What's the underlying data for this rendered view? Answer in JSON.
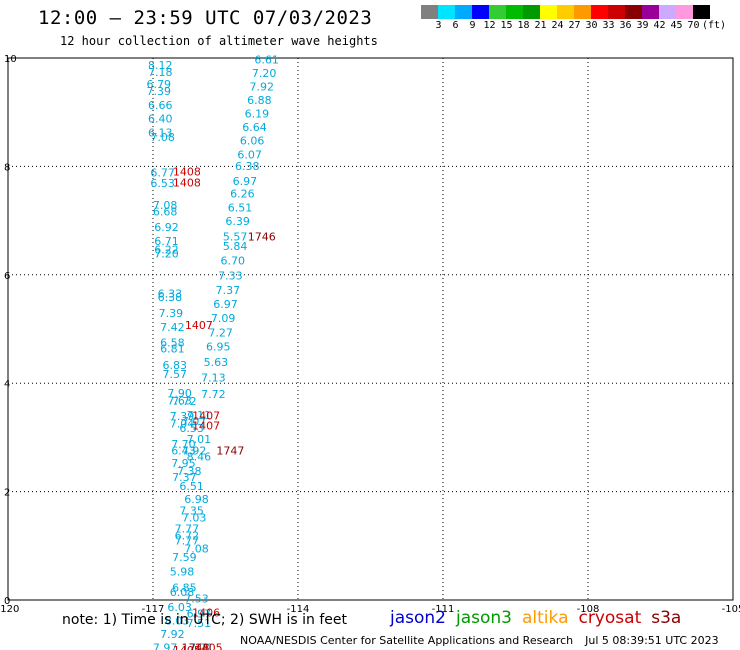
{
  "header": {
    "title": "12:00 — 23:59 UTC 07/03/2023",
    "subtitle": "12 hour collection of altimeter wave heights"
  },
  "colorbar": {
    "colors": [
      "#808080",
      "#00e5ff",
      "#00aaff",
      "#0000ff",
      "#33cc33",
      "#00bb00",
      "#009900",
      "#ffff00",
      "#ffcc00",
      "#ff9900",
      "#ff0000",
      "#cc0000",
      "#880000",
      "#990099",
      "#ccaaff",
      "#ff99dd",
      "#000000"
    ],
    "labels": [
      "3",
      "6",
      "9",
      "12",
      "15",
      "18",
      "21",
      "24",
      "27",
      "30",
      "33",
      "36",
      "39",
      "42",
      "45",
      "70",
      "(ft)"
    ]
  },
  "footer": {
    "note": "note:  1) Time is in UTC;  2) SWH is in feet",
    "satellites": [
      {
        "name": "jason2",
        "color": "#0000cc"
      },
      {
        "name": "jason3",
        "color": "#009900"
      },
      {
        "name": "altika",
        "color": "#ff9900"
      },
      {
        "name": "cryosat",
        "color": "#cc0000"
      },
      {
        "name": "s3a",
        "color": "#880000"
      }
    ],
    "credit": "NOAA/NESDIS Center for Satellite Applications and Research",
    "timestamp": "Jul  5 08:39:51 UTC 2023"
  },
  "chart_data": {
    "type": "scatter",
    "title": "12:00 — 23:59 UTC 07/03/2023",
    "subtitle": "12 hour collection of altimeter wave heights",
    "xlim": [
      -120,
      -105
    ],
    "ylim": [
      0,
      10
    ],
    "xticks": [
      "-120",
      "-117",
      "-114",
      "-111",
      "-108",
      "-105"
    ],
    "yticks": [
      "0",
      "2",
      "4",
      "6",
      "8",
      "10"
    ],
    "grid": true,
    "series": [
      {
        "name": "SWH (ft)",
        "color": "#00aadd",
        "points": [
          [
            -116.85,
            9.8,
            "8.12"
          ],
          [
            -116.85,
            9.67,
            "7.18"
          ],
          [
            -116.88,
            9.45,
            "6.79"
          ],
          [
            -116.88,
            9.32,
            "7.39"
          ],
          [
            -116.85,
            9.06,
            "6.66"
          ],
          [
            -116.85,
            8.81,
            "6.40"
          ],
          [
            -116.85,
            8.55,
            "6.13"
          ],
          [
            -116.8,
            8.47,
            "7.08"
          ],
          [
            -116.8,
            7.81,
            "6.77"
          ],
          [
            -116.8,
            7.62,
            "6.53"
          ],
          [
            -116.75,
            7.21,
            "7.08"
          ],
          [
            -116.75,
            7.09,
            "6.68"
          ],
          [
            -116.72,
            6.81,
            "6.92"
          ],
          [
            -116.72,
            6.55,
            "6.71"
          ],
          [
            -116.72,
            6.39,
            "6.22"
          ],
          [
            -116.72,
            6.32,
            "7.20"
          ],
          [
            -116.65,
            5.58,
            "6.33"
          ],
          [
            -116.65,
            5.52,
            "6.38"
          ],
          [
            -116.63,
            5.22,
            "7.39"
          ],
          [
            -116.6,
            4.96,
            "7.42"
          ],
          [
            -116.6,
            4.68,
            "6.58"
          ],
          [
            -116.6,
            4.57,
            "6.81"
          ],
          [
            -116.55,
            4.26,
            "6.83"
          ],
          [
            -116.55,
            4.1,
            "7.57"
          ],
          [
            -116.45,
            3.75,
            "7.90"
          ],
          [
            -116.45,
            3.61,
            "7.63"
          ],
          [
            -116.35,
            3.6,
            "7.72"
          ],
          [
            -116.4,
            3.32,
            "7.39"
          ],
          [
            -116.4,
            3.18,
            "7.04"
          ],
          [
            -116.2,
            3.1,
            "6.53"
          ],
          [
            -116.15,
            3.23,
            "7.07"
          ],
          [
            -116.05,
            3.34,
            "7.11"
          ],
          [
            -116.05,
            2.9,
            "7.01"
          ],
          [
            -116.37,
            2.8,
            "7.70"
          ],
          [
            -116.37,
            2.68,
            "6.43"
          ],
          [
            -116.15,
            2.68,
            "7.92"
          ],
          [
            -116.05,
            2.57,
            "8.46"
          ],
          [
            -116.37,
            2.45,
            "7.95"
          ],
          [
            -116.25,
            2.31,
            "7.38"
          ],
          [
            -116.35,
            2.2,
            "7.37"
          ],
          [
            -116.2,
            2.03,
            "6.51"
          ],
          [
            -116.1,
            1.79,
            "6.98"
          ],
          [
            -116.2,
            1.58,
            "7.35"
          ],
          [
            -116.15,
            1.45,
            "7.03"
          ],
          [
            -116.3,
            1.25,
            "7.77"
          ],
          [
            -116.3,
            1.12,
            "6.72"
          ],
          [
            -116.3,
            1.02,
            "7.77"
          ],
          [
            -116.1,
            0.88,
            "7.08"
          ],
          [
            -116.35,
            0.72,
            "7.59"
          ],
          [
            -116.4,
            0.45,
            "5.98"
          ],
          [
            -116.35,
            0.16,
            "6.85"
          ],
          [
            -116.4,
            0.07,
            "6.08"
          ],
          [
            -116.1,
            -0.05,
            "7.53"
          ],
          [
            -116.45,
            -0.2,
            "6.03"
          ],
          [
            -116.05,
            -0.32,
            "6.97"
          ],
          [
            -116.5,
            -0.45,
            "8.03"
          ],
          [
            -116.05,
            -0.5,
            "7.51"
          ],
          [
            -116.6,
            -0.7,
            "7.92"
          ],
          [
            -116.75,
            -0.95,
            "7.97"
          ],
          [
            -116.0,
            -0.95,
            "7.71"
          ],
          [
            -114.65,
            9.9,
            "6.61"
          ],
          [
            -114.7,
            9.65,
            "7.20"
          ],
          [
            -114.75,
            9.4,
            "7.92"
          ],
          [
            -114.8,
            9.15,
            "6.88"
          ],
          [
            -114.85,
            8.9,
            "6.19"
          ],
          [
            -114.9,
            8.65,
            "6.64"
          ],
          [
            -114.95,
            8.4,
            "6.06"
          ],
          [
            -115.0,
            8.15,
            "6.07"
          ],
          [
            -115.05,
            7.93,
            "6.38"
          ],
          [
            -115.1,
            7.66,
            "6.97"
          ],
          [
            -115.15,
            7.43,
            "6.26"
          ],
          [
            -115.2,
            7.17,
            "6.51"
          ],
          [
            -115.25,
            6.92,
            "6.39"
          ],
          [
            -115.3,
            6.63,
            "5.57"
          ],
          [
            -115.3,
            6.46,
            "5.84"
          ],
          [
            -115.35,
            6.19,
            "6.70"
          ],
          [
            -115.4,
            5.91,
            "7.33"
          ],
          [
            -115.45,
            5.65,
            "7.37"
          ],
          [
            -115.5,
            5.39,
            "6.97"
          ],
          [
            -115.55,
            5.13,
            "7.09"
          ],
          [
            -115.6,
            4.86,
            "7.27"
          ],
          [
            -115.65,
            4.6,
            "6.95"
          ],
          [
            -115.7,
            4.32,
            "5.63"
          ],
          [
            -115.75,
            4.03,
            "7.13"
          ],
          [
            -115.75,
            3.73,
            "7.72"
          ]
        ]
      },
      {
        "name": "pass time (UTC)",
        "color": "#cc0000",
        "points": [
          [
            -116.3,
            7.83,
            "1408"
          ],
          [
            -116.3,
            7.63,
            "1408"
          ],
          [
            -116.05,
            5.0,
            "1407"
          ],
          [
            -115.9,
            3.33,
            "1407"
          ],
          [
            -115.9,
            3.15,
            "1407"
          ],
          [
            -115.9,
            -0.3,
            "1406"
          ],
          [
            -115.85,
            -0.95,
            "1405"
          ],
          [
            -116.3,
            -1.0,
            "1405"
          ]
        ]
      },
      {
        "name": "pass time (UTC)",
        "color": "#880000",
        "points": [
          [
            -114.75,
            6.63,
            "1746"
          ],
          [
            -115.4,
            2.68,
            "1747"
          ],
          [
            -116.12,
            -0.95,
            "1748"
          ]
        ]
      }
    ]
  }
}
